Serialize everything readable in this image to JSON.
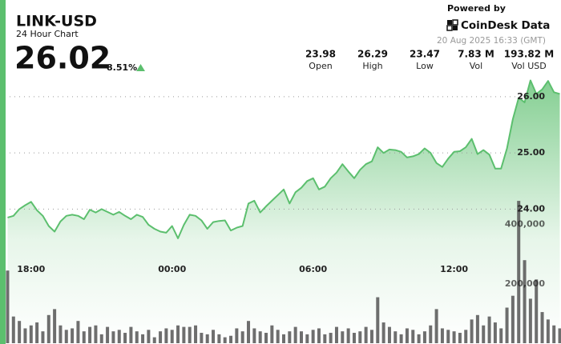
{
  "header": {
    "title": "LINK-USD",
    "subtitle": "24 Hour Chart",
    "price": "26.02",
    "change": "8.51%",
    "powered_by": "Powered by",
    "brand": "CoinDesk Data",
    "timestamp": "20 Aug 2025 16:33 (GMT)"
  },
  "stats": [
    {
      "value": "23.98",
      "label": "Open"
    },
    {
      "value": "26.29",
      "label": "High"
    },
    {
      "value": "23.47",
      "label": "Low"
    },
    {
      "value": "7.83 M",
      "label": "Vol"
    },
    {
      "value": "193.82 M",
      "label": "Vol USD"
    }
  ],
  "chart_data": {
    "type": "area",
    "color": "#5cbf6e",
    "x": [
      17,
      17.25,
      17.5,
      17.75,
      18,
      18.25,
      18.5,
      18.75,
      19,
      19.25,
      19.5,
      19.75,
      20,
      20.25,
      20.5,
      20.75,
      21,
      21.25,
      21.5,
      21.75,
      22,
      22.25,
      22.5,
      22.75,
      23,
      23.25,
      23.5,
      23.75,
      24,
      24.25,
      24.5,
      24.75,
      25,
      25.25,
      25.5,
      25.75,
      26,
      26.25,
      26.5,
      26.75,
      27,
      27.25,
      27.5,
      27.75,
      28,
      28.25,
      28.5,
      28.75,
      29,
      29.25,
      29.5,
      29.75,
      30,
      30.25,
      30.5,
      30.75,
      31,
      31.25,
      31.5,
      31.75,
      32,
      32.25,
      32.5,
      32.75,
      33,
      33.25,
      33.5,
      33.75,
      34,
      34.25,
      34.5,
      34.75,
      35,
      35.25,
      35.5,
      35.75,
      36,
      36.25,
      36.5,
      36.75,
      37,
      37.25,
      37.5,
      37.75,
      38,
      38.25,
      38.5,
      38.75,
      39,
      39.25,
      39.5,
      39.75,
      40,
      40.25,
      40.5
    ],
    "values": [
      23.85,
      23.88,
      24.0,
      24.07,
      24.13,
      23.98,
      23.88,
      23.7,
      23.6,
      23.78,
      23.88,
      23.9,
      23.88,
      23.82,
      23.99,
      23.94,
      24.0,
      23.95,
      23.9,
      23.95,
      23.88,
      23.82,
      23.9,
      23.86,
      23.72,
      23.65,
      23.6,
      23.58,
      23.7,
      23.48,
      23.72,
      23.9,
      23.88,
      23.8,
      23.65,
      23.77,
      23.79,
      23.8,
      23.62,
      23.67,
      23.7,
      24.1,
      24.15,
      23.94,
      24.05,
      24.15,
      24.25,
      24.35,
      24.1,
      24.3,
      24.38,
      24.5,
      24.55,
      24.35,
      24.4,
      24.55,
      24.65,
      24.8,
      24.67,
      24.55,
      24.7,
      24.8,
      24.85,
      25.1,
      25.0,
      25.06,
      25.05,
      25.02,
      24.92,
      24.94,
      24.98,
      25.08,
      25.0,
      24.82,
      24.75,
      24.9,
      25.02,
      25.03,
      25.1,
      25.25,
      24.98,
      25.05,
      24.97,
      24.72,
      24.72,
      25.08,
      25.6,
      25.98,
      25.9,
      26.29,
      26.05,
      26.13,
      26.28,
      26.08,
      26.05
    ],
    "xlim": [
      16.95,
      40.55
    ],
    "xticks": [
      {
        "value": 18,
        "label": "18:00"
      },
      {
        "value": 24,
        "label": "00:00"
      },
      {
        "value": 30,
        "label": "06:00"
      },
      {
        "value": 36,
        "label": "12:00"
      }
    ],
    "ylim": [
      21.6,
      26.44
    ],
    "yticks": [
      {
        "value": 24,
        "label": "24.00"
      },
      {
        "value": 25,
        "label": "25.00"
      },
      {
        "value": 26,
        "label": "26.00"
      }
    ],
    "grid": true,
    "volume": {
      "type": "bar",
      "color": "#555555",
      "values": [
        245000,
        90000,
        75000,
        50000,
        60000,
        70000,
        40000,
        95000,
        115000,
        60000,
        45000,
        50000,
        75000,
        40000,
        55000,
        60000,
        30000,
        55000,
        40000,
        45000,
        35000,
        55000,
        40000,
        30000,
        45000,
        20000,
        40000,
        50000,
        45000,
        60000,
        55000,
        55000,
        60000,
        35000,
        30000,
        45000,
        30000,
        20000,
        25000,
        50000,
        40000,
        75000,
        50000,
        40000,
        35000,
        60000,
        45000,
        30000,
        40000,
        55000,
        40000,
        30000,
        45000,
        50000,
        30000,
        35000,
        55000,
        40000,
        50000,
        35000,
        40000,
        55000,
        45000,
        155000,
        70000,
        55000,
        40000,
        30000,
        50000,
        45000,
        30000,
        40000,
        60000,
        115000,
        50000,
        45000,
        40000,
        35000,
        45000,
        80000,
        95000,
        60000,
        90000,
        70000,
        50000,
        120000,
        160000,
        480000,
        280000,
        150000,
        215000,
        105000,
        80000,
        60000,
        50000
      ],
      "ylim": [
        0,
        580000
      ],
      "yticks": [
        {
          "value": 200000,
          "label": "200,000"
        },
        {
          "value": 400000,
          "label": "400,000"
        }
      ]
    }
  }
}
